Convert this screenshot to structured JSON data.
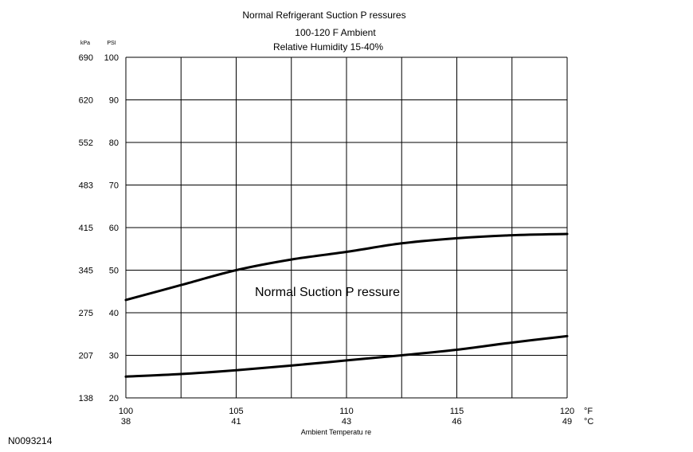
{
  "figure_id": "N0093214",
  "chart_data": {
    "type": "line",
    "title": [
      "Normal  Refrigerant  Suction  P   ressures",
      "100-120 F Ambient",
      "Relative Humidity 15-40%"
    ],
    "xlabel": "Ambient  Temperatu re",
    "x_unit_primary": "°F",
    "x_unit_secondary": "°C",
    "x_ticks": [
      {
        "f": 100,
        "c": "38"
      },
      {
        "f": 105,
        "c": "41"
      },
      {
        "f": 110,
        "c": "43"
      },
      {
        "f": 115,
        "c": "46"
      },
      {
        "f": 120,
        "c": "49"
      }
    ],
    "x_grid": [
      100,
      102.5,
      105,
      107.5,
      110,
      112.5,
      115,
      117.5,
      120
    ],
    "xlim": [
      100,
      120
    ],
    "ylim": [
      20,
      100
    ],
    "y_unit_left": "kPa",
    "y_unit_right": "PSI",
    "y_ticks": [
      {
        "psi": 100,
        "kpa": "690"
      },
      {
        "psi": 90,
        "kpa": "620"
      },
      {
        "psi": 80,
        "kpa": "552"
      },
      {
        "psi": 70,
        "kpa": "483"
      },
      {
        "psi": 60,
        "kpa": "415"
      },
      {
        "psi": 50,
        "kpa": "345"
      },
      {
        "psi": 40,
        "kpa": "275"
      },
      {
        "psi": 30,
        "kpa": "207"
      },
      {
        "psi": 20,
        "kpa": "138"
      }
    ],
    "grid": true,
    "annotation": "Normal Suction P ressure",
    "series": [
      {
        "x": [
          100,
          102.5,
          105,
          107.5,
          110,
          112.5,
          115,
          117.5,
          120
        ],
        "y": [
          43.0,
          46.5,
          50.0,
          52.5,
          54.3,
          56.3,
          57.5,
          58.2,
          58.5
        ]
      },
      {
        "x": [
          100,
          102.5,
          105,
          107.5,
          110,
          112.5,
          115,
          117.5,
          120
        ],
        "y": [
          25.0,
          25.6,
          26.5,
          27.6,
          28.8,
          30.0,
          31.3,
          33.0,
          34.5
        ]
      }
    ]
  }
}
